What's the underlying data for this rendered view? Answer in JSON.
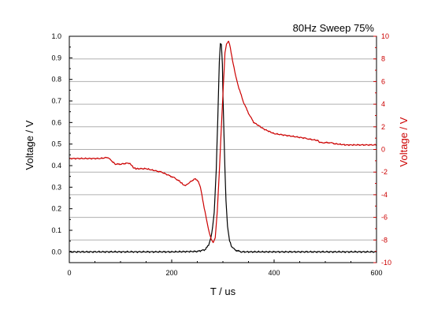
{
  "chart_data": {
    "type": "line",
    "title": "80Hz Sweep 75%",
    "xlabel": "T / us",
    "ylabel_left": "Voltage / V",
    "ylabel_right": "Voltage / V",
    "xlim": [
      0,
      600
    ],
    "ylim_left": [
      -0.05,
      1.0
    ],
    "ylim_right": [
      -10,
      10
    ],
    "x_ticks": [
      0,
      200,
      400,
      600
    ],
    "y_left_ticks": [
      "0.0",
      "0.1",
      "0.2",
      "0.3",
      "0.4",
      "0.5",
      "0.6",
      "0.7",
      "0.8",
      "0.9",
      "1.0"
    ],
    "y_right_ticks": [
      "-10",
      "-8",
      "-6",
      "-4",
      "-2",
      "0",
      "2",
      "4",
      "6",
      "8",
      "10"
    ],
    "grid": true,
    "colors": {
      "left_series": "#000000",
      "right_series": "#cc0000",
      "grid": "#b0b0b0"
    },
    "series": [
      {
        "axis": "left",
        "x": [
          0,
          100,
          200,
          250,
          265,
          272,
          278,
          283,
          287,
          290,
          293,
          295,
          297,
          299,
          300,
          302,
          304,
          306,
          309,
          313,
          318,
          325,
          335,
          400,
          500,
          600
        ],
        "values": [
          0.0,
          0.0,
          0.0,
          0.002,
          0.01,
          0.03,
          0.08,
          0.18,
          0.38,
          0.62,
          0.88,
          0.97,
          0.96,
          0.87,
          0.74,
          0.55,
          0.38,
          0.24,
          0.12,
          0.05,
          0.02,
          0.008,
          0.0,
          0.0,
          0.0,
          0.0
        ]
      },
      {
        "axis": "right",
        "x": [
          0,
          30,
          60,
          75,
          85,
          90,
          100,
          115,
          120,
          125,
          130,
          135,
          150,
          170,
          180,
          195,
          205,
          215,
          220,
          225,
          230,
          238,
          245,
          252,
          256,
          262,
          268,
          273,
          277,
          281,
          285,
          289,
          293,
          297,
          301,
          304,
          307,
          311,
          313,
          316,
          320,
          325,
          330,
          340,
          350,
          360,
          380,
          400,
          430,
          460,
          470,
          485,
          490,
          500,
          510,
          520,
          540,
          560,
          600
        ],
        "values": [
          -0.8,
          -0.8,
          -0.8,
          -0.7,
          -1.1,
          -1.3,
          -1.3,
          -1.2,
          -1.3,
          -1.6,
          -1.7,
          -1.7,
          -1.7,
          -1.9,
          -2.0,
          -2.3,
          -2.5,
          -2.8,
          -3.0,
          -3.2,
          -3.1,
          -2.8,
          -2.6,
          -2.8,
          -3.3,
          -4.8,
          -6.2,
          -7.3,
          -7.9,
          -8.2,
          -7.8,
          -5.5,
          -2.0,
          2.0,
          5.8,
          8.5,
          9.3,
          9.6,
          9.3,
          8.6,
          7.6,
          6.5,
          5.6,
          4.2,
          3.2,
          2.4,
          1.8,
          1.4,
          1.2,
          1.0,
          0.9,
          0.8,
          0.6,
          0.6,
          0.6,
          0.5,
          0.4,
          0.4,
          0.4
        ]
      }
    ]
  }
}
